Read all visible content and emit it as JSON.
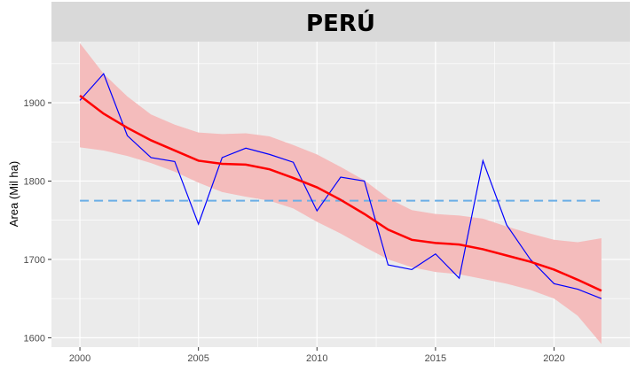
{
  "chart_data": {
    "type": "line",
    "title": "PERÚ",
    "xlabel": "",
    "ylabel": "Area (Mil ha)",
    "xlim": [
      1998.8,
      2023.2
    ],
    "ylim": [
      1588,
      1978
    ],
    "x_ticks": [
      2000,
      2005,
      2010,
      2015,
      2020
    ],
    "y_ticks": [
      1600,
      1700,
      1800,
      1900
    ],
    "grid": true,
    "legend": "none",
    "colors": {
      "panel_background": "#ebebeb",
      "strip_background": "#d9d9d9",
      "observed_line": "#0000ff",
      "smooth_line": "#ff0000",
      "confidence_band": "#f4bcbc",
      "mean_line": "#6aaee6"
    },
    "series": [
      {
        "role": "observed",
        "x": [
          2000,
          2001,
          2002,
          2003,
          2004,
          2005,
          2006,
          2007,
          2008,
          2009,
          2010,
          2011,
          2012,
          2013,
          2014,
          2015,
          2016,
          2017,
          2018,
          2019,
          2020,
          2021,
          2022
        ],
        "y": [
          1903,
          1937,
          1858,
          1830,
          1825,
          1745,
          1830,
          1842,
          1834,
          1824,
          1762,
          1805,
          1800,
          1693,
          1687,
          1707,
          1676,
          1826,
          1744,
          1700,
          1669,
          1662,
          1650
        ]
      },
      {
        "role": "smoothed",
        "x": [
          2000,
          2001,
          2002,
          2003,
          2004,
          2005,
          2006,
          2007,
          2008,
          2009,
          2010,
          2011,
          2012,
          2013,
          2014,
          2015,
          2016,
          2017,
          2018,
          2019,
          2020,
          2021,
          2022
        ],
        "y": [
          1909,
          1886,
          1868,
          1852,
          1839,
          1826,
          1822,
          1821,
          1815,
          1804,
          1792,
          1776,
          1758,
          1738,
          1725,
          1721,
          1719,
          1713,
          1705,
          1697,
          1687,
          1674,
          1660
        ],
        "lower": [
          1843,
          1839,
          1832,
          1823,
          1812,
          1798,
          1786,
          1780,
          1775,
          1765,
          1748,
          1733,
          1716,
          1700,
          1690,
          1684,
          1681,
          1675,
          1669,
          1661,
          1650,
          1628,
          1592
        ],
        "upper": [
          1976,
          1937,
          1908,
          1885,
          1872,
          1862,
          1860,
          1861,
          1857,
          1846,
          1834,
          1818,
          1801,
          1778,
          1763,
          1758,
          1756,
          1752,
          1742,
          1733,
          1725,
          1722,
          1727
        ]
      },
      {
        "role": "mean",
        "x": [
          2000,
          2022
        ],
        "y": [
          1775,
          1775
        ]
      }
    ]
  }
}
